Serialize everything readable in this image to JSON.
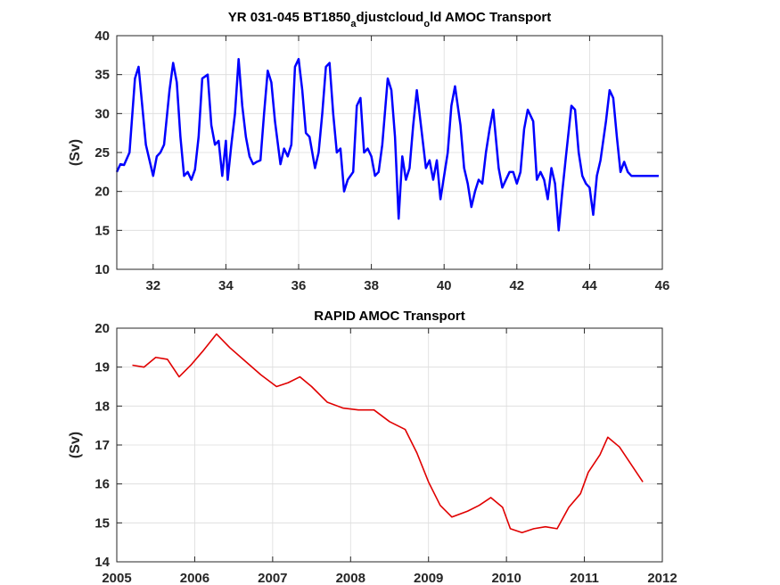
{
  "chart_data": [
    {
      "type": "line",
      "title_prefix": "YR 031-045 BT1850",
      "title_sub1": "a",
      "title_mid": "djustcloud",
      "title_sub2": "o",
      "title_suffix": "ld AMOC Transport",
      "ylabel": "(Sv)",
      "xlim": [
        31,
        46
      ],
      "ylim": [
        10,
        40
      ],
      "xticks": [
        "32",
        "34",
        "36",
        "38",
        "40",
        "42",
        "44",
        "46"
      ],
      "yticks": [
        "10",
        "15",
        "20",
        "25",
        "30",
        "35",
        "40"
      ],
      "grid": true,
      "color": "#0000ff",
      "series": [
        {
          "x": [
            31.0,
            31.1,
            31.2,
            31.35,
            31.5,
            31.6,
            31.7,
            31.8,
            31.9,
            32.0,
            32.1,
            32.2,
            32.3,
            32.45,
            32.55,
            32.65,
            32.75,
            32.85,
            32.95,
            33.05,
            33.15,
            33.25,
            33.35,
            33.5,
            33.6,
            33.7,
            33.8,
            33.9,
            34.0,
            34.05,
            34.15,
            34.25,
            34.35,
            34.45,
            34.55,
            34.65,
            34.75,
            34.85,
            34.95,
            35.05,
            35.15,
            35.25,
            35.35,
            35.5,
            35.6,
            35.7,
            35.8,
            35.9,
            36.0,
            36.1,
            36.2,
            36.3,
            36.45,
            36.55,
            36.65,
            36.75,
            36.85,
            36.95,
            37.05,
            37.15,
            37.25,
            37.35,
            37.5,
            37.6,
            37.7,
            37.8,
            37.9,
            38.0,
            38.1,
            38.2,
            38.3,
            38.45,
            38.55,
            38.65,
            38.75,
            38.85,
            38.95,
            39.05,
            39.15,
            39.25,
            39.35,
            39.5,
            39.6,
            39.7,
            39.8,
            39.9,
            40.0,
            40.1,
            40.2,
            40.3,
            40.45,
            40.55,
            40.65,
            40.75,
            40.85,
            40.95,
            41.05,
            41.15,
            41.25,
            41.35,
            41.5,
            41.6,
            41.7,
            41.8,
            41.9,
            42.0,
            42.1,
            42.2,
            42.3,
            42.45,
            42.55,
            42.65,
            42.75,
            42.85,
            42.95,
            43.05,
            43.15,
            43.25,
            43.35,
            43.5,
            43.6,
            43.7,
            43.8,
            43.9,
            44.0,
            44.1,
            44.2,
            44.3,
            44.45,
            44.55,
            44.65,
            44.75,
            44.85,
            44.95,
            45.05,
            45.15,
            45.25,
            45.35,
            45.5,
            45.6,
            45.7,
            45.8,
            45.9
          ],
          "y": [
            22.5,
            23.5,
            23.4,
            25.0,
            34.5,
            36.0,
            31.0,
            26.0,
            24.0,
            22.0,
            24.5,
            25.0,
            26.0,
            33.0,
            36.5,
            34.0,
            27.0,
            22.0,
            22.5,
            21.5,
            22.8,
            27.0,
            34.5,
            35.0,
            28.5,
            26.0,
            26.5,
            22.0,
            26.5,
            21.5,
            26.0,
            30.0,
            37.0,
            31.0,
            27.0,
            24.5,
            23.5,
            23.8,
            24.0,
            30.0,
            35.5,
            34.0,
            29.0,
            23.5,
            25.5,
            24.5,
            26.0,
            36.0,
            37.0,
            33.0,
            27.5,
            27.0,
            23.0,
            25.0,
            30.0,
            36.0,
            36.5,
            30.0,
            25.0,
            25.5,
            20.0,
            21.5,
            22.5,
            31.0,
            32.0,
            25.0,
            25.5,
            24.5,
            22.0,
            22.5,
            26.0,
            34.5,
            33.0,
            27.0,
            16.5,
            24.5,
            21.5,
            23.0,
            28.5,
            33.0,
            29.0,
            23.0,
            24.0,
            21.5,
            24.0,
            19.0,
            22.0,
            25.0,
            31.0,
            33.5,
            28.5,
            23.0,
            21.0,
            18.0,
            20.0,
            21.5,
            21.0,
            25.0,
            28.0,
            30.5,
            23.0,
            20.5,
            21.5,
            22.5,
            22.5,
            21.0,
            22.5,
            28.0,
            30.5,
            29.0,
            21.5,
            22.5,
            21.5,
            19.0,
            23.0,
            21.0,
            15.0,
            20.0,
            24.5,
            31.0,
            30.5,
            25.0,
            22.0,
            21.0,
            20.5,
            17.0,
            22.0,
            24.0,
            29.0,
            33.0,
            32.0,
            27.0,
            22.5,
            23.8,
            22.5,
            22.0,
            22.0,
            22.0,
            22.0,
            22.0,
            22.0,
            22.0,
            22.0
          ]
        }
      ]
    },
    {
      "type": "line",
      "title": "RAPID AMOC Transport",
      "ylabel": "(Sv)",
      "xlim": [
        2005,
        2012
      ],
      "ylim": [
        14,
        20
      ],
      "xticks": [
        "2005",
        "2006",
        "2007",
        "2008",
        "2009",
        "2010",
        "2011",
        "2012"
      ],
      "yticks": [
        "14",
        "15",
        "16",
        "17",
        "18",
        "19",
        "20"
      ],
      "grid": true,
      "color": "#e00000",
      "series": [
        {
          "x": [
            2005.2,
            2005.35,
            2005.5,
            2005.65,
            2005.8,
            2005.95,
            2006.1,
            2006.28,
            2006.45,
            2006.65,
            2006.85,
            2007.05,
            2007.2,
            2007.35,
            2007.5,
            2007.7,
            2007.9,
            2008.1,
            2008.3,
            2008.5,
            2008.7,
            2008.85,
            2009.0,
            2009.15,
            2009.3,
            2009.5,
            2009.65,
            2009.8,
            2009.95,
            2010.05,
            2010.2,
            2010.35,
            2010.5,
            2010.65,
            2010.8,
            2010.95,
            2011.05,
            2011.2,
            2011.3,
            2011.45,
            2011.6,
            2011.75
          ],
          "y": [
            19.05,
            19.0,
            19.25,
            19.2,
            18.75,
            19.05,
            19.4,
            19.85,
            19.5,
            19.15,
            18.8,
            18.5,
            18.6,
            18.75,
            18.5,
            18.1,
            17.95,
            17.9,
            17.9,
            17.6,
            17.4,
            16.8,
            16.05,
            15.45,
            15.15,
            15.3,
            15.45,
            15.65,
            15.4,
            14.85,
            14.75,
            14.85,
            14.9,
            14.85,
            15.4,
            15.75,
            16.3,
            16.75,
            17.2,
            16.95,
            16.5,
            16.05
          ]
        }
      ]
    }
  ]
}
